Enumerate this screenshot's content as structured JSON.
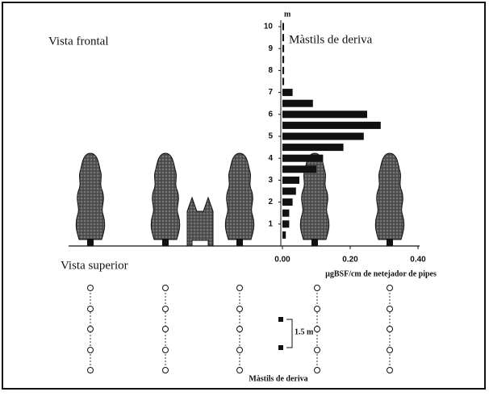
{
  "chart_data": {
    "type": "bar",
    "orientation": "horizontal",
    "annotations": {
      "front_view": "Vista frontal",
      "masts_title": "Màstils de deriva",
      "top_view": "Vista superior",
      "spacing": "1.5 m",
      "masts_bottom": "Màstils de deriva"
    },
    "y_label": "m",
    "x_label": "µgBSF/cm de netejador de pipes",
    "y": [
      0.5,
      1,
      1.5,
      2,
      2.5,
      3,
      3.5,
      4,
      4.5,
      5,
      5.5,
      6,
      6.5,
      7,
      7.5,
      8,
      8.5,
      9,
      9.5,
      10
    ],
    "values": [
      0.01,
      0.02,
      0.02,
      0.03,
      0.04,
      0.05,
      0.1,
      0.12,
      0.18,
      0.24,
      0.29,
      0.25,
      0.09,
      0.03,
      0.005,
      0.005,
      0.005,
      0.005,
      0.003,
      0.003
    ],
    "color": "#111111",
    "ylim": [
      0,
      10
    ],
    "yticks": [
      1,
      2,
      3,
      4,
      5,
      6,
      7,
      8,
      9,
      10
    ],
    "xlim": [
      0,
      0.4
    ],
    "xticks": [
      {
        "value": 0,
        "label": "0.00"
      },
      {
        "value": 0.2,
        "label": "0.20"
      },
      {
        "value": 0.4,
        "label": "0.40"
      }
    ]
  }
}
